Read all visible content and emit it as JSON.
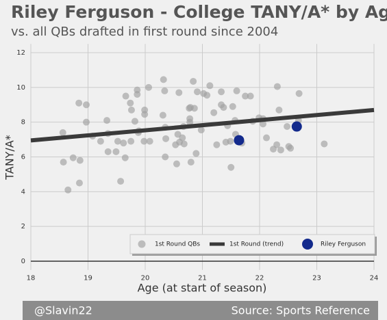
{
  "chart_data": {
    "type": "scatter",
    "title": "Riley Ferguson - College TANY/A* by Age",
    "subtitle": "vs. all QBs drafted in first round since 2004",
    "xlabel": "Age (at start of season)",
    "ylabel": "TANY/A*",
    "xlim": [
      18,
      24
    ],
    "ylim": [
      -0.5,
      12.5
    ],
    "xticks": [
      18,
      19,
      20,
      21,
      22,
      23,
      24
    ],
    "yticks": [
      0,
      2,
      4,
      6,
      8,
      10,
      12
    ],
    "grid": true,
    "legend": "lower right",
    "series": [
      {
        "name": "1st Round QBs",
        "type": "scatter",
        "color": "#a0a0a0",
        "x": [
          18.56,
          18.57,
          18.65,
          18.74,
          18.84,
          18.86,
          18.85,
          18.97,
          18.97,
          19.08,
          19.22,
          19.33,
          19.35,
          19.35,
          19.49,
          19.52,
          19.57,
          19.62,
          19.65,
          19.66,
          19.74,
          19.76,
          19.75,
          19.82,
          19.86,
          19.86,
          19.88,
          19.89,
          19.99,
          19.99,
          19.98,
          20.06,
          20.08,
          20.31,
          20.32,
          20.34,
          20.35,
          20.36,
          20.35,
          20.53,
          20.55,
          20.57,
          20.59,
          20.6,
          20.65,
          20.67,
          20.68,
          20.77,
          20.78,
          20.78,
          20.79,
          20.8,
          20.84,
          20.86,
          20.91,
          20.89,
          20.98,
          21.02,
          21.08,
          21.13,
          21.2,
          21.25,
          21.33,
          21.33,
          21.37,
          21.41,
          21.44,
          21.49,
          21.5,
          21.53,
          21.57,
          21.58,
          21.6,
          21.69,
          21.75,
          21.84,
          21.88,
          21.99,
          22.06,
          22.06,
          22.12,
          22.24,
          22.3,
          22.31,
          22.34,
          22.37,
          22.48,
          22.51,
          22.54,
          22.68,
          22.69,
          23.13
        ],
        "values": [
          7.4,
          5.7,
          4.1,
          5.95,
          9.1,
          5.8,
          4.5,
          9.0,
          8.0,
          7.2,
          6.9,
          8.1,
          7.35,
          6.3,
          6.3,
          6.9,
          4.6,
          6.8,
          5.95,
          9.5,
          9.1,
          8.7,
          6.9,
          8.05,
          9.85,
          9.6,
          7.4,
          7.5,
          8.45,
          8.7,
          6.9,
          10.0,
          6.9,
          8.4,
          10.45,
          9.8,
          6.0,
          7.05,
          7.7,
          6.7,
          5.6,
          7.3,
          9.7,
          6.85,
          7.1,
          7.75,
          6.75,
          8.8,
          8.0,
          8.2,
          8.85,
          5.7,
          10.35,
          8.8,
          9.75,
          6.2,
          7.55,
          9.65,
          9.55,
          10.1,
          8.55,
          6.7,
          9.75,
          9.0,
          8.85,
          6.85,
          7.8,
          6.9,
          5.4,
          8.9,
          8.1,
          7.3,
          9.8,
          6.8,
          9.5,
          9.5,
          8.05,
          8.25,
          7.9,
          8.2,
          7.1,
          6.45,
          6.7,
          10.05,
          8.7,
          6.4,
          7.75,
          6.6,
          6.5,
          8.1,
          9.65,
          6.75
        ]
      },
      {
        "name": "1st Round (trend)",
        "type": "line",
        "color": "#3a3a3a",
        "x": [
          18,
          24
        ],
        "values": [
          6.95,
          8.7
        ]
      },
      {
        "name": "Riley Ferguson",
        "type": "scatter",
        "color": "#132a8c",
        "x": [
          21.64,
          22.65
        ],
        "values": [
          6.96,
          7.75
        ]
      }
    ]
  },
  "footer": {
    "left": "@Slavin22",
    "right": "Source: Sports Reference"
  }
}
